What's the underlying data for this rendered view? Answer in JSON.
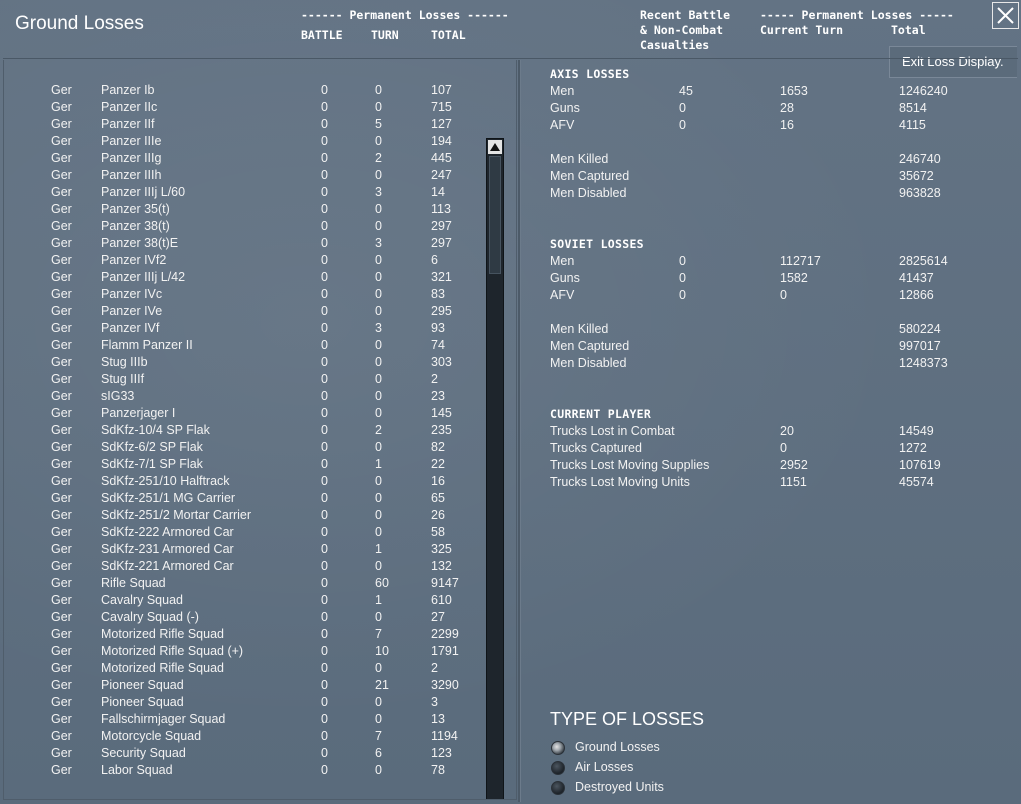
{
  "title": "Ground Losses",
  "header": {
    "perm_left": "------ Permanent Losses ------",
    "battle": "BATTLE",
    "turn": "TURN",
    "total": "TOTAL",
    "recent_line1": "Recent Battle",
    "recent_line2": "& Non-Combat",
    "recent_line3": "Casualties",
    "perm_right": "----- Permanent Losses -----",
    "current_turn": "Current Turn",
    "total_right": "Total"
  },
  "exit_tooltip": "Exit Loss Display.",
  "units": [
    {
      "nat": "Ger",
      "name": "Panzer Ib",
      "battle": "0",
      "turn": "0",
      "total": "107"
    },
    {
      "nat": "Ger",
      "name": "Panzer IIc",
      "battle": "0",
      "turn": "0",
      "total": "715"
    },
    {
      "nat": "Ger",
      "name": "Panzer IIf",
      "battle": "0",
      "turn": "5",
      "total": "127"
    },
    {
      "nat": "Ger",
      "name": "Panzer IIIe",
      "battle": "0",
      "turn": "0",
      "total": "194"
    },
    {
      "nat": "Ger",
      "name": "Panzer IIIg",
      "battle": "0",
      "turn": "2",
      "total": "445"
    },
    {
      "nat": "Ger",
      "name": "Panzer IIIh",
      "battle": "0",
      "turn": "0",
      "total": "247"
    },
    {
      "nat": "Ger",
      "name": "Panzer IIIj L/60",
      "battle": "0",
      "turn": "3",
      "total": "14"
    },
    {
      "nat": "Ger",
      "name": "Panzer 35(t)",
      "battle": "0",
      "turn": "0",
      "total": "113"
    },
    {
      "nat": "Ger",
      "name": "Panzer 38(t)",
      "battle": "0",
      "turn": "0",
      "total": "297"
    },
    {
      "nat": "Ger",
      "name": "Panzer 38(t)E",
      "battle": "0",
      "turn": "3",
      "total": "297"
    },
    {
      "nat": "Ger",
      "name": "Panzer IVf2",
      "battle": "0",
      "turn": "0",
      "total": "6"
    },
    {
      "nat": "Ger",
      "name": "Panzer IIIj L/42",
      "battle": "0",
      "turn": "0",
      "total": "321"
    },
    {
      "nat": "Ger",
      "name": "Panzer IVc",
      "battle": "0",
      "turn": "0",
      "total": "83"
    },
    {
      "nat": "Ger",
      "name": "Panzer IVe",
      "battle": "0",
      "turn": "0",
      "total": "295"
    },
    {
      "nat": "Ger",
      "name": "Panzer IVf",
      "battle": "0",
      "turn": "3",
      "total": "93"
    },
    {
      "nat": "Ger",
      "name": "Flamm Panzer II",
      "battle": "0",
      "turn": "0",
      "total": "74"
    },
    {
      "nat": "Ger",
      "name": "Stug IIIb",
      "battle": "0",
      "turn": "0",
      "total": "303"
    },
    {
      "nat": "Ger",
      "name": "Stug IIIf",
      "battle": "0",
      "turn": "0",
      "total": "2"
    },
    {
      "nat": "Ger",
      "name": "sIG33",
      "battle": "0",
      "turn": "0",
      "total": "23"
    },
    {
      "nat": "Ger",
      "name": "Panzerjager I",
      "battle": "0",
      "turn": "0",
      "total": "145"
    },
    {
      "nat": "Ger",
      "name": "SdKfz-10/4 SP Flak",
      "battle": "0",
      "turn": "2",
      "total": "235"
    },
    {
      "nat": "Ger",
      "name": "SdKfz-6/2 SP Flak",
      "battle": "0",
      "turn": "0",
      "total": "82"
    },
    {
      "nat": "Ger",
      "name": "SdKfz-7/1 SP Flak",
      "battle": "0",
      "turn": "1",
      "total": "22"
    },
    {
      "nat": "Ger",
      "name": "SdKfz-251/10 Halftrack",
      "battle": "0",
      "turn": "0",
      "total": "16"
    },
    {
      "nat": "Ger",
      "name": "SdKfz-251/1 MG Carrier",
      "battle": "0",
      "turn": "0",
      "total": "65"
    },
    {
      "nat": "Ger",
      "name": "SdKfz-251/2 Mortar Carrier",
      "battle": "0",
      "turn": "0",
      "total": "26"
    },
    {
      "nat": "Ger",
      "name": "SdKfz-222 Armored Car",
      "battle": "0",
      "turn": "0",
      "total": "58"
    },
    {
      "nat": "Ger",
      "name": "SdKfz-231 Armored Car",
      "battle": "0",
      "turn": "1",
      "total": "325"
    },
    {
      "nat": "Ger",
      "name": "SdKfz-221 Armored Car",
      "battle": "0",
      "turn": "0",
      "total": "132"
    },
    {
      "nat": "Ger",
      "name": "Rifle Squad",
      "battle": "0",
      "turn": "60",
      "total": "9147"
    },
    {
      "nat": "Ger",
      "name": "Cavalry Squad",
      "battle": "0",
      "turn": "1",
      "total": "610"
    },
    {
      "nat": "Ger",
      "name": "Cavalry Squad (-)",
      "battle": "0",
      "turn": "0",
      "total": "27"
    },
    {
      "nat": "Ger",
      "name": "Motorized Rifle Squad",
      "battle": "0",
      "turn": "7",
      "total": "2299"
    },
    {
      "nat": "Ger",
      "name": "Motorized Rifle Squad (+)",
      "battle": "0",
      "turn": "10",
      "total": "1791"
    },
    {
      "nat": "Ger",
      "name": "Motorized Rifle Squad",
      "battle": "0",
      "turn": "0",
      "total": "2"
    },
    {
      "nat": "Ger",
      "name": "Pioneer Squad",
      "battle": "0",
      "turn": "21",
      "total": "3290"
    },
    {
      "nat": "Ger",
      "name": "Pioneer Squad",
      "battle": "0",
      "turn": "0",
      "total": "3"
    },
    {
      "nat": "Ger",
      "name": "Fallschirmjager Squad",
      "battle": "0",
      "turn": "0",
      "total": "13"
    },
    {
      "nat": "Ger",
      "name": "Motorcycle Squad",
      "battle": "0",
      "turn": "7",
      "total": "1194"
    },
    {
      "nat": "Ger",
      "name": "Security Squad",
      "battle": "0",
      "turn": "6",
      "total": "123"
    },
    {
      "nat": "Ger",
      "name": "Labor Squad",
      "battle": "0",
      "turn": "0",
      "total": "78"
    }
  ],
  "axis": {
    "title": "AXIS LOSSES",
    "rows": [
      {
        "label": "Men",
        "recent": "45",
        "current": "1653",
        "total": "1246240"
      },
      {
        "label": "Guns",
        "recent": "0",
        "current": "28",
        "total": "8514"
      },
      {
        "label": "AFV",
        "recent": "0",
        "current": "16",
        "total": "4115"
      }
    ],
    "detail": [
      {
        "label": "Men Killed",
        "total": "246740"
      },
      {
        "label": "Men Captured",
        "total": "35672"
      },
      {
        "label": "Men Disabled",
        "total": "963828"
      }
    ]
  },
  "soviet": {
    "title": "SOVIET LOSSES",
    "rows": [
      {
        "label": "Men",
        "recent": "0",
        "current": "112717",
        "total": "2825614"
      },
      {
        "label": "Guns",
        "recent": "0",
        "current": "1582",
        "total": "41437"
      },
      {
        "label": "AFV",
        "recent": "0",
        "current": "0",
        "total": "12866"
      }
    ],
    "detail": [
      {
        "label": "Men Killed",
        "total": "580224"
      },
      {
        "label": "Men Captured",
        "total": "997017"
      },
      {
        "label": "Men Disabled",
        "total": "1248373"
      }
    ]
  },
  "player": {
    "title": "CURRENT PLAYER",
    "rows": [
      {
        "label": "Trucks Lost in Combat",
        "current": "20",
        "total": "14549"
      },
      {
        "label": "Trucks Captured",
        "current": "0",
        "total": "1272"
      },
      {
        "label": "Trucks Lost Moving Supplies",
        "current": "2952",
        "total": "107619"
      },
      {
        "label": "Trucks Lost Moving Units",
        "current": "1151",
        "total": "45574"
      }
    ]
  },
  "type_of_losses": {
    "title": "TYPE OF LOSSES",
    "options": [
      {
        "label": "Ground Losses",
        "selected": true
      },
      {
        "label": "Air Losses",
        "selected": false
      },
      {
        "label": "Destroyed Units",
        "selected": false
      }
    ]
  }
}
